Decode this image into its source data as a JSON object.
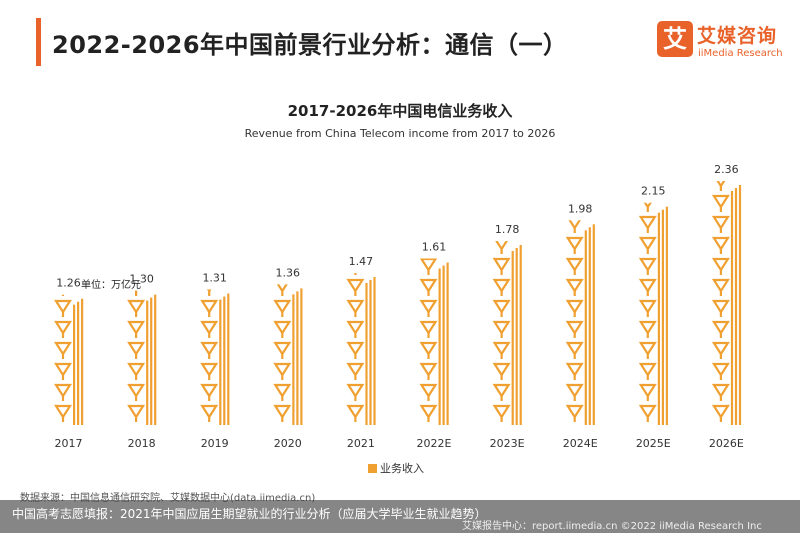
{
  "page": {
    "title": "2022-2026年中国前景行业分析：通信（一）",
    "accent_color": "#e8622a"
  },
  "logo": {
    "icon_text": "艾",
    "cn": "艾媒咨询",
    "en": "iiMedia Research"
  },
  "chart_data": {
    "type": "bar",
    "title": "2017-2026年中国电信业务收入",
    "subtitle": "Revenue from China Telecom income from 2017 to 2026",
    "unit_label": "单位：万亿元",
    "categories": [
      "2017",
      "2018",
      "2019",
      "2020",
      "2021",
      "2022E",
      "2023E",
      "2024E",
      "2025E",
      "2026E"
    ],
    "series": [
      {
        "name": "业务收入",
        "values": [
          1.26,
          1.3,
          1.31,
          1.36,
          1.47,
          1.61,
          1.78,
          1.98,
          2.15,
          2.36
        ],
        "color": "#f0a030"
      }
    ],
    "data_labels": [
      "1.26",
      "1.30",
      "1.31",
      "1.36",
      "1.47",
      "1.61",
      "1.78",
      "1.98",
      "2.15",
      "2.36"
    ],
    "ylim": [
      0,
      2.5
    ],
    "grid": false,
    "legend_position": "bottom",
    "mark_icon": "antenna-tower-icon"
  },
  "source": "数据来源：中国信息通信研究院、艾媒数据中心(data.iimedia.cn)",
  "footer": {
    "left": "中国高考志愿填报：2021年中国应届生期望就业的行业分析（应届大学毕业生就业趋势）",
    "right": "艾媒报告中心：report.iimedia.cn   ©2022  iiMedia Research  Inc"
  }
}
